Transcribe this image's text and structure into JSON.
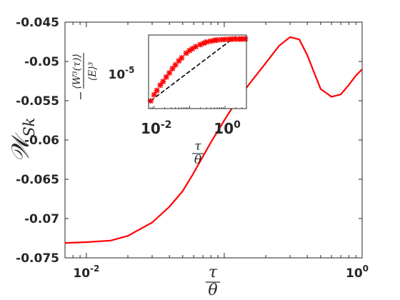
{
  "chart_data": [
    {
      "type": "line",
      "xscale": "log",
      "xlim": [
        0.007,
        1.0
      ],
      "ylim": [
        -0.075,
        -0.045
      ],
      "grid": false,
      "legend": "none",
      "xlabel": {
        "numerator": "τ",
        "denominator": "θ"
      },
      "ylabel": {
        "main": "𝒲",
        "sub": "Sk"
      },
      "xticks": [
        {
          "value": 0.01,
          "base": "10",
          "exp": "-2"
        },
        {
          "value": 1.0,
          "base": "10",
          "exp": "0"
        }
      ],
      "yticks": [
        {
          "value": -0.045,
          "label": "-0.045"
        },
        {
          "value": -0.05,
          "label": "-0.05"
        },
        {
          "value": -0.055,
          "label": "-0.055"
        },
        {
          "value": -0.06,
          "label": "-0.06"
        },
        {
          "value": -0.065,
          "label": "-0.065"
        },
        {
          "value": -0.07,
          "label": "-0.07"
        },
        {
          "value": -0.075,
          "label": "-0.075"
        }
      ],
      "series": [
        {
          "color": "#ff0000",
          "x": [
            0.007,
            0.01,
            0.015,
            0.02,
            0.03,
            0.04,
            0.05,
            0.06,
            0.08,
            0.1,
            0.12,
            0.15,
            0.2,
            0.25,
            0.3,
            0.35,
            0.4,
            0.45,
            0.5,
            0.6,
            0.7,
            0.8,
            0.9,
            1.0
          ],
          "y": [
            -0.0731,
            -0.073,
            -0.0728,
            -0.0722,
            -0.0705,
            -0.0685,
            -0.0665,
            -0.0642,
            -0.0603,
            -0.0575,
            -0.0553,
            -0.053,
            -0.0502,
            -0.048,
            -0.0469,
            -0.0472,
            -0.0492,
            -0.0515,
            -0.0535,
            -0.0545,
            -0.0542,
            -0.053,
            -0.0518,
            -0.051
          ]
        }
      ]
    },
    {
      "type": "scatter",
      "xscale": "log",
      "yscale": "log",
      "xlim": [
        0.007,
        4.0
      ],
      "ylim": [
        2e-05,
        0.0007
      ],
      "grid": false,
      "legend": "none",
      "xlabel": {
        "numerator": "τ",
        "denominator": "θ"
      },
      "ylabel": {
        "prefix": "−",
        "numerator": "⟨W³(τ)⟩",
        "denominator": "⟨E⟩³"
      },
      "xticks": [
        {
          "value": 0.01,
          "base": "10",
          "exp": "-2"
        },
        {
          "value": 1.0,
          "base": "10",
          "exp": "0"
        }
      ],
      "yticks": [
        {
          "value": 1e-05,
          "base": "10",
          "exp": "-5"
        }
      ],
      "series": [
        {
          "style": "markers",
          "color": "#ff0000",
          "x": [
            0.008,
            0.01,
            0.012,
            0.015,
            0.018,
            0.022,
            0.027,
            0.033,
            0.04,
            0.05,
            0.06,
            0.08,
            0.1,
            0.12,
            0.15,
            0.2,
            0.25,
            0.3,
            0.4,
            0.5,
            0.6,
            0.8,
            1.0,
            1.3,
            1.6,
            2.0,
            2.5,
            3.0,
            3.7
          ],
          "y": [
            2.9e-05,
            3.9e-05,
            4.8e-05,
            6.2e-05,
            7.4e-05,
            9.2e-05,
            0.000112,
            0.000138,
            0.000165,
            0.0002,
            0.000232,
            0.00029,
            0.00033,
            0.00036,
            0.0004,
            0.00044,
            0.00047,
            0.0005,
            0.00052,
            0.00054,
            0.00055,
            0.00056,
            0.000565,
            0.00057,
            0.000573,
            0.000575,
            0.000577,
            0.000578,
            0.00058
          ]
        },
        {
          "style": "dashed",
          "color": "#000000",
          "x": [
            0.008,
            2.0
          ],
          "y": [
            2.9e-05,
            0.00065
          ]
        }
      ]
    }
  ]
}
